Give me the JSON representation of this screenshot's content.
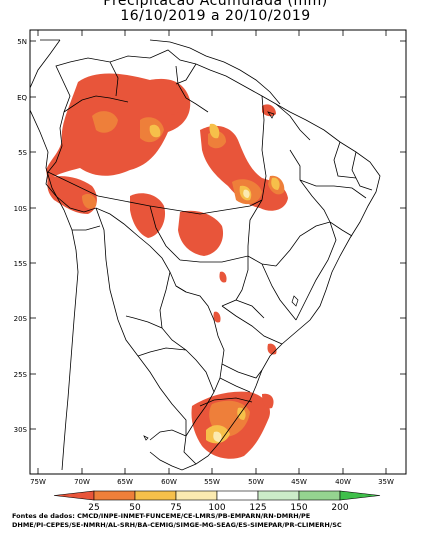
{
  "title_line1": "Precipitacao Acumulada (mm)",
  "title_line2": "16/10/2019 a 20/10/2019",
  "lat_labels": [
    "5N",
    "EQ",
    "5S",
    "10S",
    "15S",
    "20S",
    "25S",
    "30S"
  ],
  "lon_labels": [
    "75W",
    "70W",
    "65W",
    "60W",
    "55W",
    "50W",
    "45W",
    "40W",
    "35W"
  ],
  "legend": {
    "values": [
      "25",
      "50",
      "75",
      "100",
      "125",
      "150",
      "200"
    ],
    "colors": [
      "#e8553a",
      "#ee7f3a",
      "#f6c04a",
      "#fbeab0",
      "#ffffff",
      "#ccecc9",
      "#95d490",
      "#3fbf4a"
    ]
  },
  "sources_line1": "Fontes de dados: CMCD/INPE-INMET-FUNCEME/CE-LMRS/PB-EMPARN/RN-DMRH/PE",
  "sources_line2": "DHME/PI-CEPES/SE-NMRH/AL-SRH/BA-CEMIG/SIMGE-MG-SEAG/ES-SIMEPAR/PR-CLIMERH/SC"
}
